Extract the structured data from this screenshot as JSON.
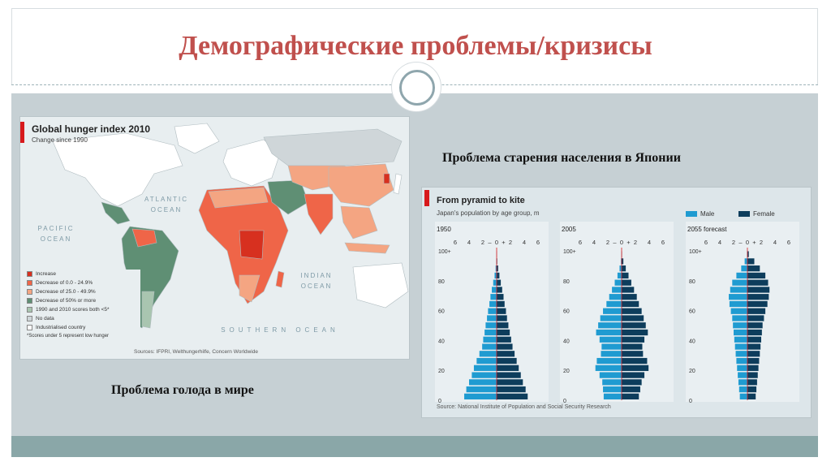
{
  "slide": {
    "title": "Демографические проблемы/кризисы",
    "hunger_caption": "Проблема голода в мире",
    "aging_caption": "Проблема старения населения в Японии"
  },
  "map": {
    "title": "Global hunger index 2010",
    "subtitle": "Change since 1990",
    "oceans": [
      "ATLANTIC OCEAN",
      "PACIFIC OCEAN",
      "INDIAN OCEAN",
      "SOUTHERN OCEAN"
    ],
    "legend": [
      {
        "label": "Increase",
        "color": "#d7301f"
      },
      {
        "label": "Decrease of 0.0 - 24.9%",
        "color": "#ef6548"
      },
      {
        "label": "Decrease of 25.0 - 49.9%",
        "color": "#f4a582"
      },
      {
        "label": "Decrease of 50% or more",
        "color": "#5f8f74"
      },
      {
        "label": "1990 and 2010 scores both <5*",
        "color": "#a9c5b0"
      },
      {
        "label": "No data",
        "color": "#cfd6d9"
      },
      {
        "label": "Industrialised country",
        "color": "#ffffff"
      }
    ],
    "note": "*Scores under 5 represent low hunger",
    "source": "Sources: IFPRI, Welthungerhilfe, Concern Worldwide"
  },
  "pyramids": {
    "title": "From pyramid to kite",
    "subtitle": "Japan's population by age group, m",
    "legend": [
      {
        "label": "Male",
        "color": "#1f9bd1"
      },
      {
        "label": "Female",
        "color": "#0d3d5c"
      }
    ],
    "source": "Source: National Institute of Population and Social Security Research",
    "panels": [
      {
        "label": "1950",
        "axis_ticks": [
          "6",
          "4",
          "2",
          "–",
          "0",
          "+",
          "2",
          "4",
          "6"
        ],
        "age_labels": [
          "100+",
          "80",
          "60",
          "40",
          "20",
          "0"
        ],
        "male": [
          0.01,
          0.05,
          0.15,
          0.3,
          0.5,
          0.7,
          0.9,
          1.05,
          1.25,
          1.4,
          1.6,
          1.75,
          1.95,
          2.1,
          2.5,
          2.9,
          3.3,
          3.6,
          4.0,
          4.4,
          4.7
        ],
        "female": [
          0.02,
          0.08,
          0.22,
          0.4,
          0.6,
          0.8,
          1.0,
          1.15,
          1.35,
          1.5,
          1.7,
          1.9,
          2.1,
          2.3,
          2.6,
          2.9,
          3.2,
          3.5,
          3.8,
          4.2,
          4.5
        ]
      },
      {
        "label": "2005",
        "axis_ticks": [
          "6",
          "4",
          "2",
          "–",
          "0",
          "+",
          "2",
          "4",
          "6"
        ],
        "age_labels": [
          "100+",
          "80",
          "60",
          "40",
          "20",
          "0"
        ],
        "male": [
          0.02,
          0.1,
          0.3,
          0.6,
          1.0,
          1.4,
          1.8,
          2.2,
          2.7,
          3.1,
          3.4,
          3.7,
          3.2,
          2.9,
          3.0,
          3.6,
          3.8,
          3.2,
          2.8,
          2.7,
          2.6
        ],
        "female": [
          0.05,
          0.25,
          0.6,
          1.0,
          1.4,
          1.8,
          2.2,
          2.5,
          2.9,
          3.2,
          3.5,
          3.8,
          3.3,
          3.0,
          3.1,
          3.7,
          3.9,
          3.3,
          2.9,
          2.7,
          2.5
        ]
      },
      {
        "label": "2055 forecast",
        "axis_ticks": [
          "6",
          "4",
          "2",
          "–",
          "0",
          "+",
          "2",
          "4",
          "6"
        ],
        "age_labels": [
          "100+",
          "80",
          "60",
          "40",
          "20",
          "0"
        ],
        "male": [
          0.05,
          0.4,
          0.9,
          1.6,
          2.2,
          2.5,
          2.7,
          2.6,
          2.4,
          2.2,
          2.1,
          2.0,
          1.9,
          1.8,
          1.7,
          1.6,
          1.5,
          1.4,
          1.3,
          1.2,
          1.1
        ],
        "female": [
          0.2,
          1.0,
          1.8,
          2.6,
          3.0,
          3.2,
          3.1,
          2.9,
          2.6,
          2.4,
          2.2,
          2.1,
          2.0,
          1.9,
          1.8,
          1.7,
          1.6,
          1.5,
          1.4,
          1.3,
          1.2
        ]
      }
    ]
  }
}
